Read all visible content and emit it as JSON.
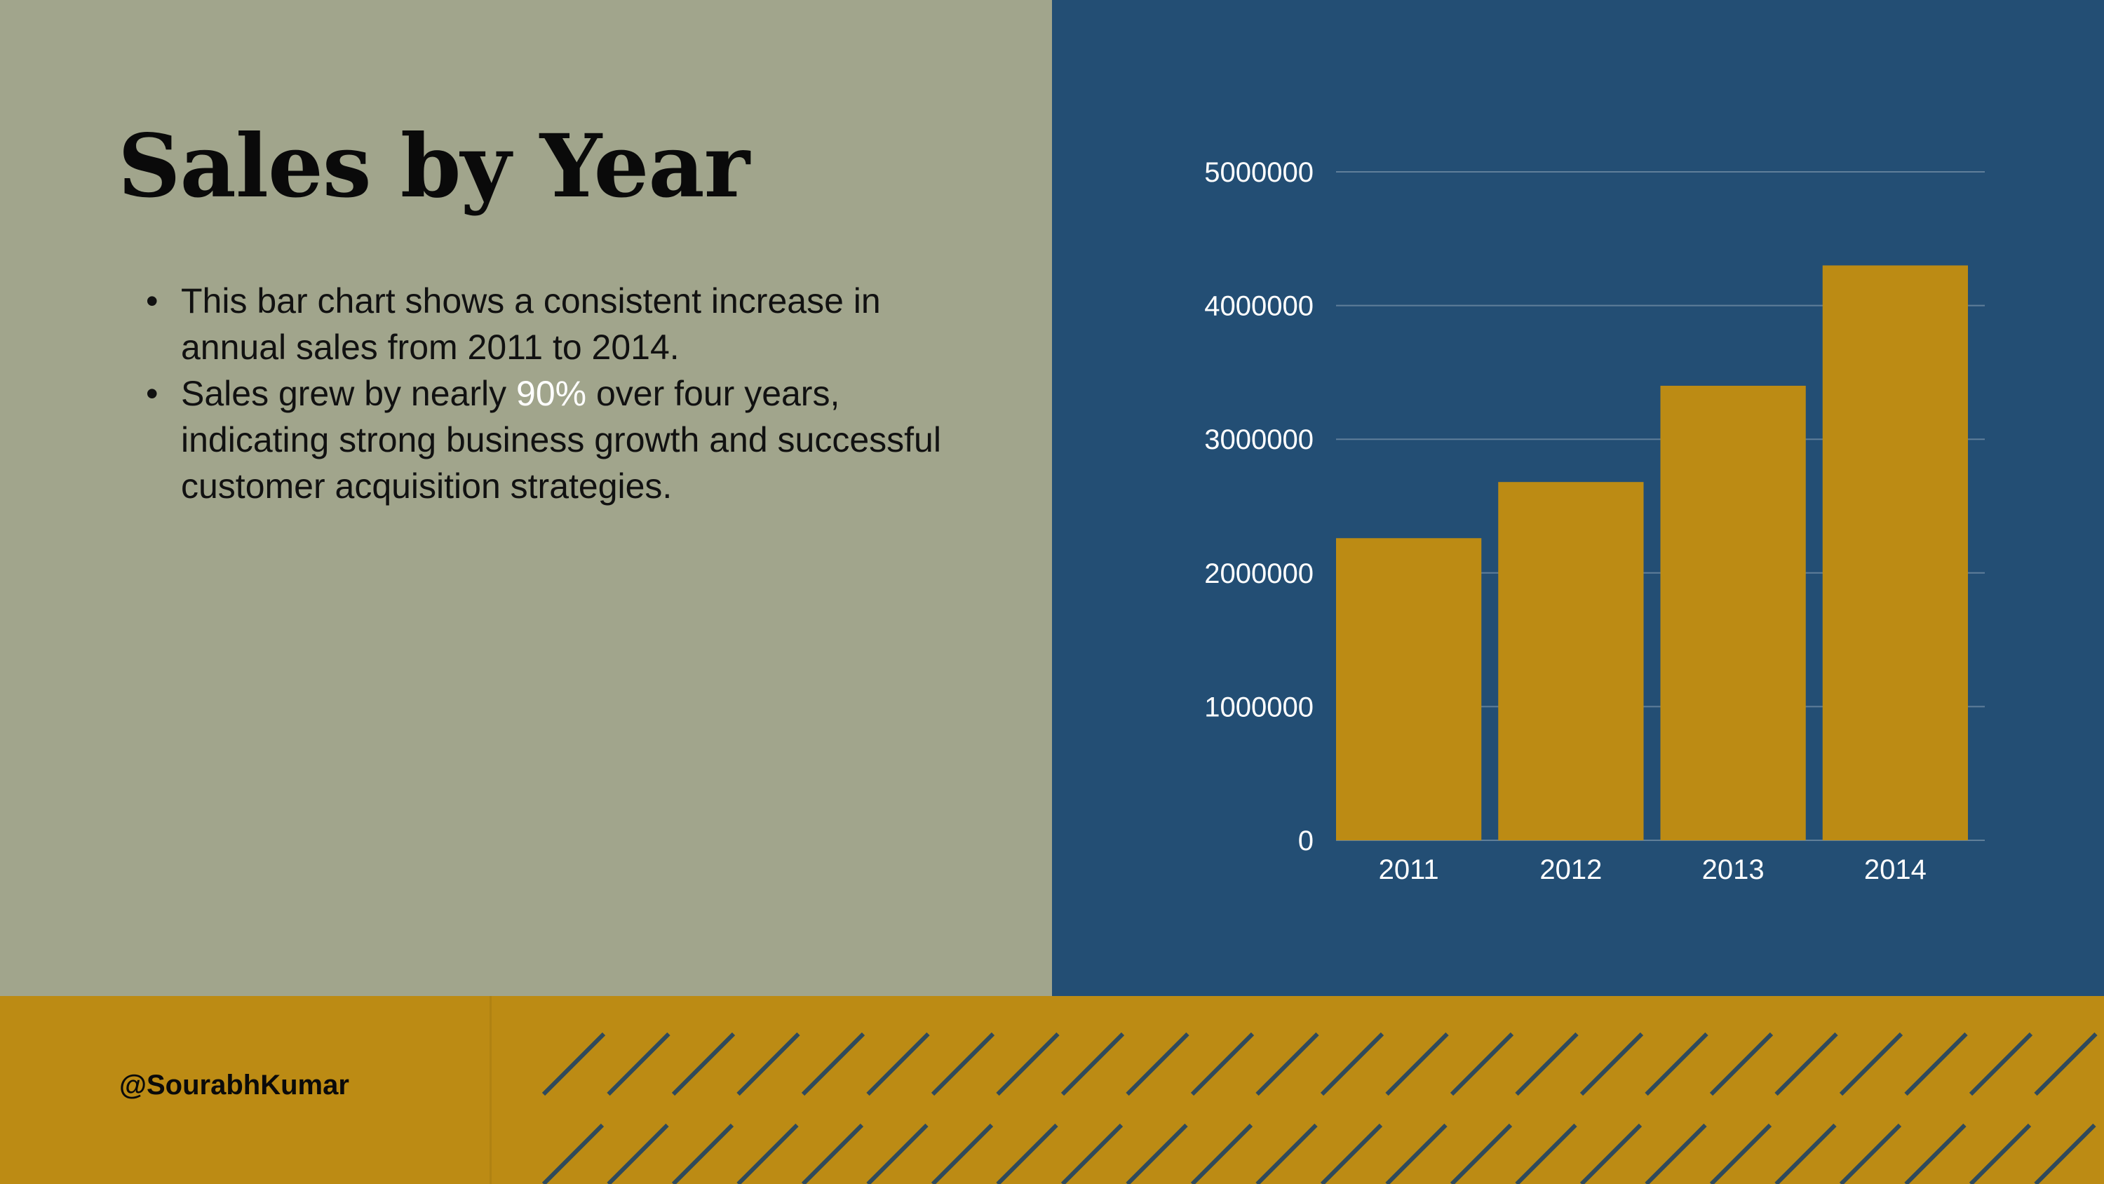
{
  "slide": {
    "title": "Sales by Year",
    "bullets": [
      {
        "text": "This bar chart shows a consistent increase in annual sales from 2011 to 2014."
      },
      {
        "before": "Sales grew by nearly ",
        "highlight": "90%",
        "after": " over four years, indicating strong business growth and successful customer acquisition strategies."
      }
    ]
  },
  "footer": {
    "handle": "@SourabhKumar"
  },
  "colors": {
    "left_panel": "#a1a58c",
    "chart_panel": "#234e74",
    "bar": "#bc8b14",
    "footer": "#bc8b14",
    "hatch": "#2f4a5c",
    "highlight": "#ffffff"
  },
  "chart_data": {
    "type": "bar",
    "categories": [
      "2011",
      "2012",
      "2013",
      "2014"
    ],
    "values": [
      2260000,
      2680000,
      3400000,
      4300000
    ],
    "ylim": [
      0,
      5000000
    ],
    "yticks": [
      0,
      1000000,
      2000000,
      3000000,
      4000000,
      5000000
    ],
    "ytick_labels": [
      "0",
      "1000000",
      "2000000",
      "3000000",
      "4000000",
      "5000000"
    ],
    "grid": true,
    "legend": "none",
    "title": "",
    "xlabel": "",
    "ylabel": ""
  }
}
